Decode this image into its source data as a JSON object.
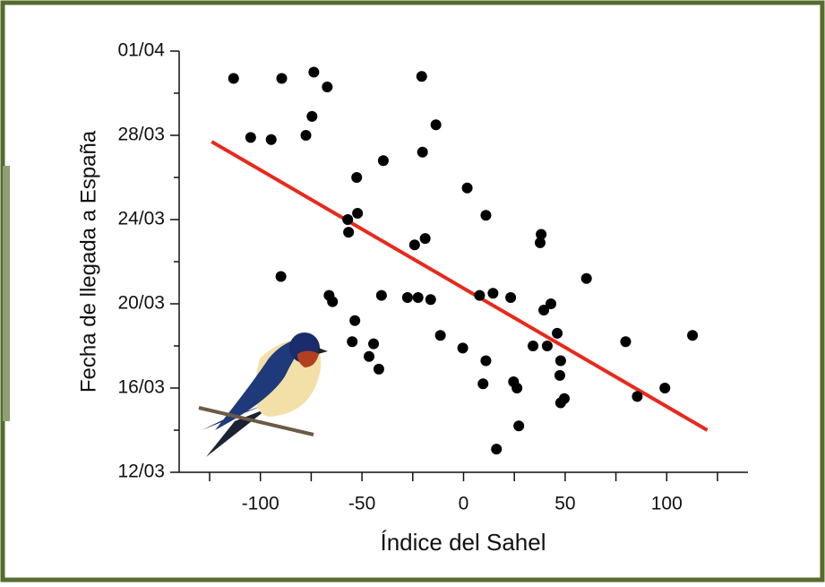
{
  "chart_data": {
    "type": "scatter",
    "xlabel": "Índice del Sahel",
    "ylabel": "Fecha de llegada a España",
    "x": [
      -113.2,
      -104.8,
      -94.7,
      -89.5,
      -89.9,
      -77.6,
      -74.6,
      -73.7,
      -67.1,
      -66.2,
      -64.5,
      -57.0,
      -56.6,
      -54.8,
      -53.5,
      -52.6,
      -52.2,
      -46.5,
      -44.3,
      -41.7,
      -40.4,
      -39.5,
      -27.6,
      -24.1,
      -22.4,
      -20.6,
      -20.2,
      -18.9,
      -16.2,
      -13.6,
      -11.4,
      -0.4,
      1.8,
      7.9,
      9.6,
      11.0,
      11.0,
      14.5,
      16.2,
      23.2,
      24.6,
      26.3,
      27.2,
      34.2,
      37.7,
      38.2,
      39.5,
      41.2,
      43.0,
      46.1,
      47.4,
      47.8,
      47.8,
      49.6,
      60.5,
      79.8,
      85.5,
      99.1,
      112.7
    ],
    "values": [
      30.7,
      27.9,
      27.8,
      30.7,
      21.3,
      28.0,
      28.9,
      31.0,
      30.3,
      20.4,
      20.1,
      24.0,
      23.4,
      18.2,
      19.2,
      26.0,
      24.3,
      17.5,
      18.1,
      16.9,
      20.4,
      26.8,
      20.3,
      22.8,
      20.3,
      30.8,
      27.2,
      23.1,
      20.2,
      28.5,
      18.5,
      17.9,
      25.5,
      20.4,
      16.2,
      24.2,
      17.3,
      20.5,
      13.1,
      20.3,
      16.3,
      16.0,
      14.2,
      18.0,
      22.9,
      23.3,
      19.7,
      18.0,
      20.0,
      18.6,
      16.6,
      17.3,
      15.3,
      15.5,
      21.2,
      18.2,
      15.6,
      16.0,
      18.5
    ],
    "color": "#000000",
    "trend": {
      "x": [
        -124,
        120
      ],
      "y": [
        27.7,
        14.0
      ],
      "color": "#e8291c"
    },
    "xlim": [
      -140,
      140
    ],
    "xticks": [
      -100,
      -50,
      0,
      50,
      100
    ],
    "xminorticks": [
      -125,
      -75,
      -25,
      25,
      75,
      125
    ],
    "ylim": [
      12,
      32
    ],
    "yticks": [
      {
        "value": 12,
        "label": "12/03"
      },
      {
        "value": 16,
        "label": "16/03"
      },
      {
        "value": 20,
        "label": "20/03"
      },
      {
        "value": 24,
        "label": "24/03"
      },
      {
        "value": 28,
        "label": "28/03"
      },
      {
        "value": 32,
        "label": "01/04"
      }
    ],
    "yminorticks": [
      14,
      18,
      22,
      26,
      30
    ]
  }
}
